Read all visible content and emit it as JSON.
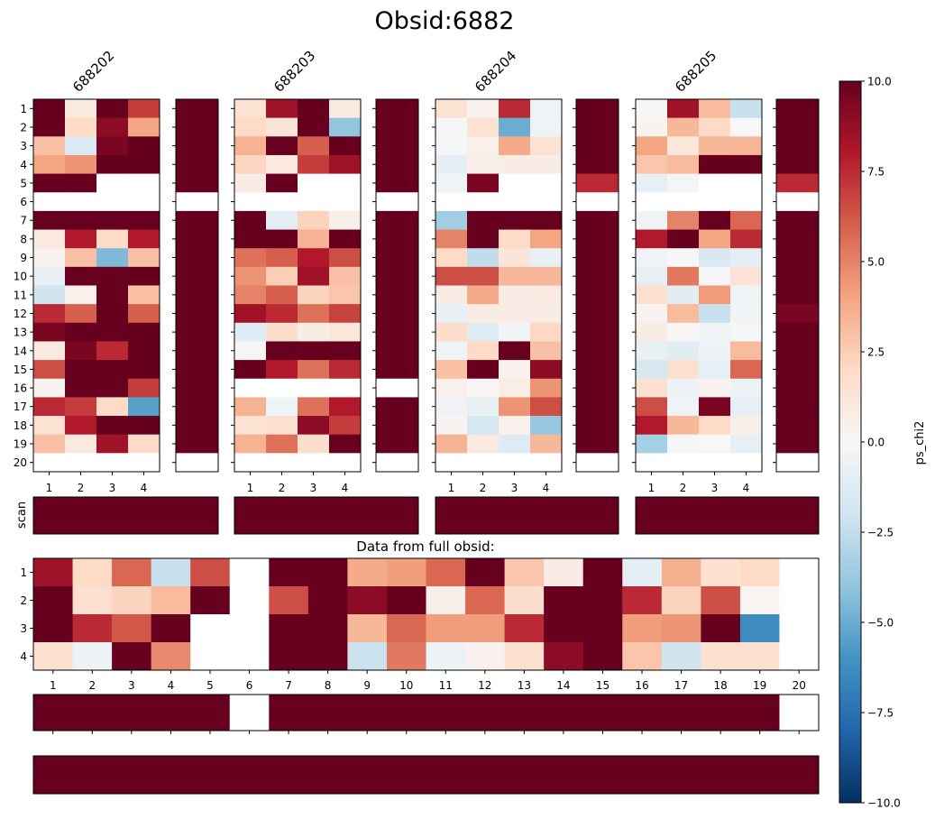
{
  "chart_data": {
    "type": "heatmap",
    "title": "Obsid:6882",
    "colormap": "RdBu_r",
    "clim": [
      -10,
      10
    ],
    "colorbar": {
      "label": "ps_chi2",
      "ticks": [
        -10.0,
        -7.5,
        -5.0,
        -2.5,
        0.0,
        2.5,
        5.0,
        7.5,
        10.0
      ],
      "tick_labels": [
        "−10.0",
        "−7.5",
        "−5.0",
        "−2.5",
        "0.0",
        "2.5",
        "5.0",
        "7.5",
        "10.0"
      ],
      "placement": "right"
    },
    "scan_panels": [
      {
        "name": "688202",
        "x_ticks": [
          "1",
          "2",
          "3",
          "4"
        ],
        "y_ticks": [
          "1",
          "2",
          "3",
          "4",
          "5",
          "6",
          "7",
          "8",
          "9",
          "10",
          "11",
          "12",
          "13",
          "14",
          "15",
          "16",
          "17",
          "18",
          "19",
          "20"
        ],
        "values": [
          [
            10,
            1,
            10,
            7
          ],
          [
            10,
            2,
            9,
            4
          ],
          [
            3,
            -1.5,
            9.5,
            10
          ],
          [
            4,
            4.5,
            10,
            10
          ],
          [
            10,
            10,
            null,
            null
          ],
          [
            null,
            null,
            null,
            null
          ],
          [
            10,
            10,
            10,
            10
          ],
          [
            1,
            8,
            2,
            8
          ],
          [
            0.3,
            3,
            -4.5,
            3
          ],
          [
            -0.8,
            10,
            10,
            10
          ],
          [
            -2,
            0.5,
            10,
            3
          ],
          [
            7.5,
            6,
            10,
            6
          ],
          [
            9.5,
            10,
            10,
            10
          ],
          [
            1,
            9.5,
            7.5,
            10
          ],
          [
            6.5,
            10,
            10,
            10
          ],
          [
            0.3,
            10,
            10,
            7
          ],
          [
            7.5,
            7,
            2,
            -5.5
          ],
          [
            1.5,
            8,
            10,
            10
          ],
          [
            3,
            1,
            8.5,
            2
          ],
          [
            null,
            null,
            null,
            null
          ]
        ],
        "side": [
          10,
          10,
          10,
          10,
          10,
          null,
          10,
          10,
          10,
          10,
          10,
          10,
          10,
          10,
          10,
          10,
          10,
          10,
          10,
          null
        ]
      },
      {
        "name": "688203",
        "x_ticks": [
          "1",
          "2",
          "3",
          "4"
        ],
        "y_ticks": [
          "1",
          "2",
          "3",
          "4",
          "5",
          "6",
          "7",
          "8",
          "9",
          "10",
          "11",
          "12",
          "13",
          "14",
          "15",
          "16",
          "17",
          "18",
          "19",
          "20"
        ],
        "values": [
          [
            1.5,
            8.5,
            10,
            1
          ],
          [
            2,
            1.3,
            10,
            -4
          ],
          [
            3.5,
            10,
            6,
            10
          ],
          [
            2.2,
            1,
            7,
            8.5
          ],
          [
            0.8,
            10,
            null,
            null
          ],
          [
            null,
            null,
            null,
            null
          ],
          [
            10,
            -1,
            2.3,
            0.6
          ],
          [
            10,
            10,
            3.5,
            10
          ],
          [
            5.5,
            6,
            8,
            6.5
          ],
          [
            4.5,
            2.5,
            8.5,
            3
          ],
          [
            5,
            6,
            2.3,
            2.8
          ],
          [
            8.5,
            7.5,
            5.5,
            6.8
          ],
          [
            -1.2,
            1.8,
            0.8,
            1.2
          ],
          [
            0.1,
            10,
            10,
            10
          ],
          [
            10,
            8,
            5.5,
            7.5
          ],
          [
            null,
            null,
            null,
            null
          ],
          [
            3.5,
            -0.5,
            5.5,
            8
          ],
          [
            1.5,
            1.7,
            9,
            7
          ],
          [
            3.5,
            5.5,
            1.8,
            10
          ],
          [
            null,
            null,
            null,
            null
          ]
        ],
        "side": [
          10,
          10,
          10,
          10,
          10,
          null,
          10,
          10,
          10,
          10,
          10,
          10,
          10,
          10,
          10,
          null,
          10,
          10,
          10,
          null
        ]
      },
      {
        "name": "688204",
        "x_ticks": [
          "1",
          "2",
          "3",
          "4"
        ],
        "y_ticks": [
          "1",
          "2",
          "3",
          "4",
          "5",
          "6",
          "7",
          "8",
          "9",
          "10",
          "11",
          "12",
          "13",
          "14",
          "15",
          "16",
          "17",
          "18",
          "19",
          "20"
        ],
        "values": [
          [
            1.5,
            0.4,
            7.5,
            -0.4
          ],
          [
            -0.2,
            1.5,
            -5,
            -0.5
          ],
          [
            -0.1,
            0.5,
            3.8,
            1.5
          ],
          [
            -1,
            0.6,
            0.8,
            0.8
          ],
          [
            -0.5,
            9.5,
            null,
            null
          ],
          [
            null,
            null,
            null,
            null
          ],
          [
            -3.5,
            10,
            10,
            10
          ],
          [
            5,
            10,
            2,
            4
          ],
          [
            2,
            -2.5,
            1.3,
            -0.8
          ],
          [
            6.5,
            6.5,
            3.3,
            3.3
          ],
          [
            0.8,
            3.8,
            0.8,
            0.9
          ],
          [
            -0.8,
            0.8,
            0.8,
            0.8
          ],
          [
            1.8,
            -1.2,
            -0.3,
            2.1
          ],
          [
            -0.5,
            2,
            10,
            3
          ],
          [
            3,
            10,
            0.4,
            9
          ],
          [
            0.5,
            0.1,
            0.7,
            4.5
          ],
          [
            -0.4,
            -0.8,
            4.5,
            6.5
          ],
          [
            0.3,
            -1.8,
            0.4,
            -3.8
          ],
          [
            3.5,
            1,
            -1.3,
            3.3
          ],
          [
            null,
            null,
            null,
            null
          ]
        ],
        "side": [
          10,
          10,
          10,
          10,
          7.5,
          null,
          10,
          10,
          10,
          10,
          10,
          10,
          10,
          10,
          10,
          10,
          10,
          10,
          10,
          null
        ]
      },
      {
        "name": "688205",
        "x_ticks": [
          "1",
          "2",
          "3",
          "4"
        ],
        "y_ticks": [
          "1",
          "2",
          "3",
          "4",
          "5",
          "6",
          "7",
          "8",
          "9",
          "10",
          "11",
          "12",
          "13",
          "14",
          "15",
          "16",
          "17",
          "18",
          "19",
          "20"
        ],
        "values": [
          [
            0.1,
            8.5,
            3.2,
            -2.3
          ],
          [
            0.3,
            3.3,
            2,
            0
          ],
          [
            4,
            1.2,
            3.3,
            3.4
          ],
          [
            2.8,
            3.2,
            10,
            10
          ],
          [
            -0.9,
            -0.2,
            null,
            null
          ],
          [
            null,
            null,
            null,
            null
          ],
          [
            -0.5,
            5,
            10,
            5.8
          ],
          [
            8,
            10,
            4,
            7.5
          ],
          [
            -0.4,
            -0.1,
            -1.6,
            -1
          ],
          [
            -0.9,
            5.3,
            -0.1,
            1.4
          ],
          [
            1.6,
            -1.1,
            4.3,
            -0.4
          ],
          [
            0.3,
            3.2,
            -2.3,
            -0.3
          ],
          [
            0.8,
            0.1,
            -0.3,
            -0.1
          ],
          [
            -0.8,
            -1.1,
            -0.6,
            3.2
          ],
          [
            -1.7,
            1.6,
            -0.9,
            5.8
          ],
          [
            1.6,
            -0.6,
            0.3,
            -0.6
          ],
          [
            6.5,
            -0.3,
            9.5,
            -0.9
          ],
          [
            8,
            3.3,
            2,
            0.6
          ],
          [
            -3.4,
            -0.1,
            0,
            -0.9
          ],
          [
            null,
            null,
            null,
            null
          ]
        ],
        "side": [
          10,
          10,
          10,
          10,
          7.5,
          null,
          10,
          10,
          10,
          10,
          10,
          9.5,
          10,
          10,
          10,
          10,
          10,
          10,
          10,
          null
        ]
      }
    ],
    "scan_row": {
      "ylabel": "scan",
      "values": [
        10,
        10,
        10,
        10
      ]
    },
    "full_obsid": {
      "title": "Data from full obsid:",
      "x_ticks": [
        "1",
        "2",
        "3",
        "4",
        "5",
        "6",
        "7",
        "8",
        "9",
        "10",
        "11",
        "12",
        "13",
        "14",
        "15",
        "16",
        "17",
        "18",
        "19",
        "20"
      ],
      "y_ticks": [
        "1",
        "2",
        "3",
        "4"
      ],
      "values": [
        [
          8.5,
          2,
          5.8,
          -2.3,
          6.5,
          null,
          10,
          10,
          3.8,
          4.2,
          5.8,
          10,
          2.8,
          0.8,
          10,
          -1,
          3.6,
          1.6,
          2,
          null
        ],
        [
          10,
          1.7,
          2.3,
          3.2,
          10,
          null,
          6.5,
          10,
          9,
          10,
          0.6,
          5.8,
          1.8,
          10,
          10,
          7.5,
          2.3,
          6.5,
          0.2,
          null
        ],
        [
          10,
          7.5,
          6.2,
          10,
          null,
          null,
          10,
          10,
          3.3,
          5.8,
          4.2,
          4.2,
          7.5,
          10,
          10,
          4.2,
          4.5,
          10,
          -6.3,
          null
        ],
        [
          1.6,
          -0.6,
          10,
          4.8,
          null,
          null,
          10,
          10,
          -2.2,
          5.3,
          -0.6,
          0.4,
          1.6,
          9,
          10,
          2.8,
          -2,
          1.6,
          1.6,
          null
        ]
      ],
      "column_summary": [
        10,
        10,
        10,
        10,
        10,
        null,
        10,
        10,
        10,
        10,
        10,
        10,
        10,
        10,
        10,
        10,
        10,
        10,
        10,
        null
      ],
      "overall": 10
    }
  }
}
